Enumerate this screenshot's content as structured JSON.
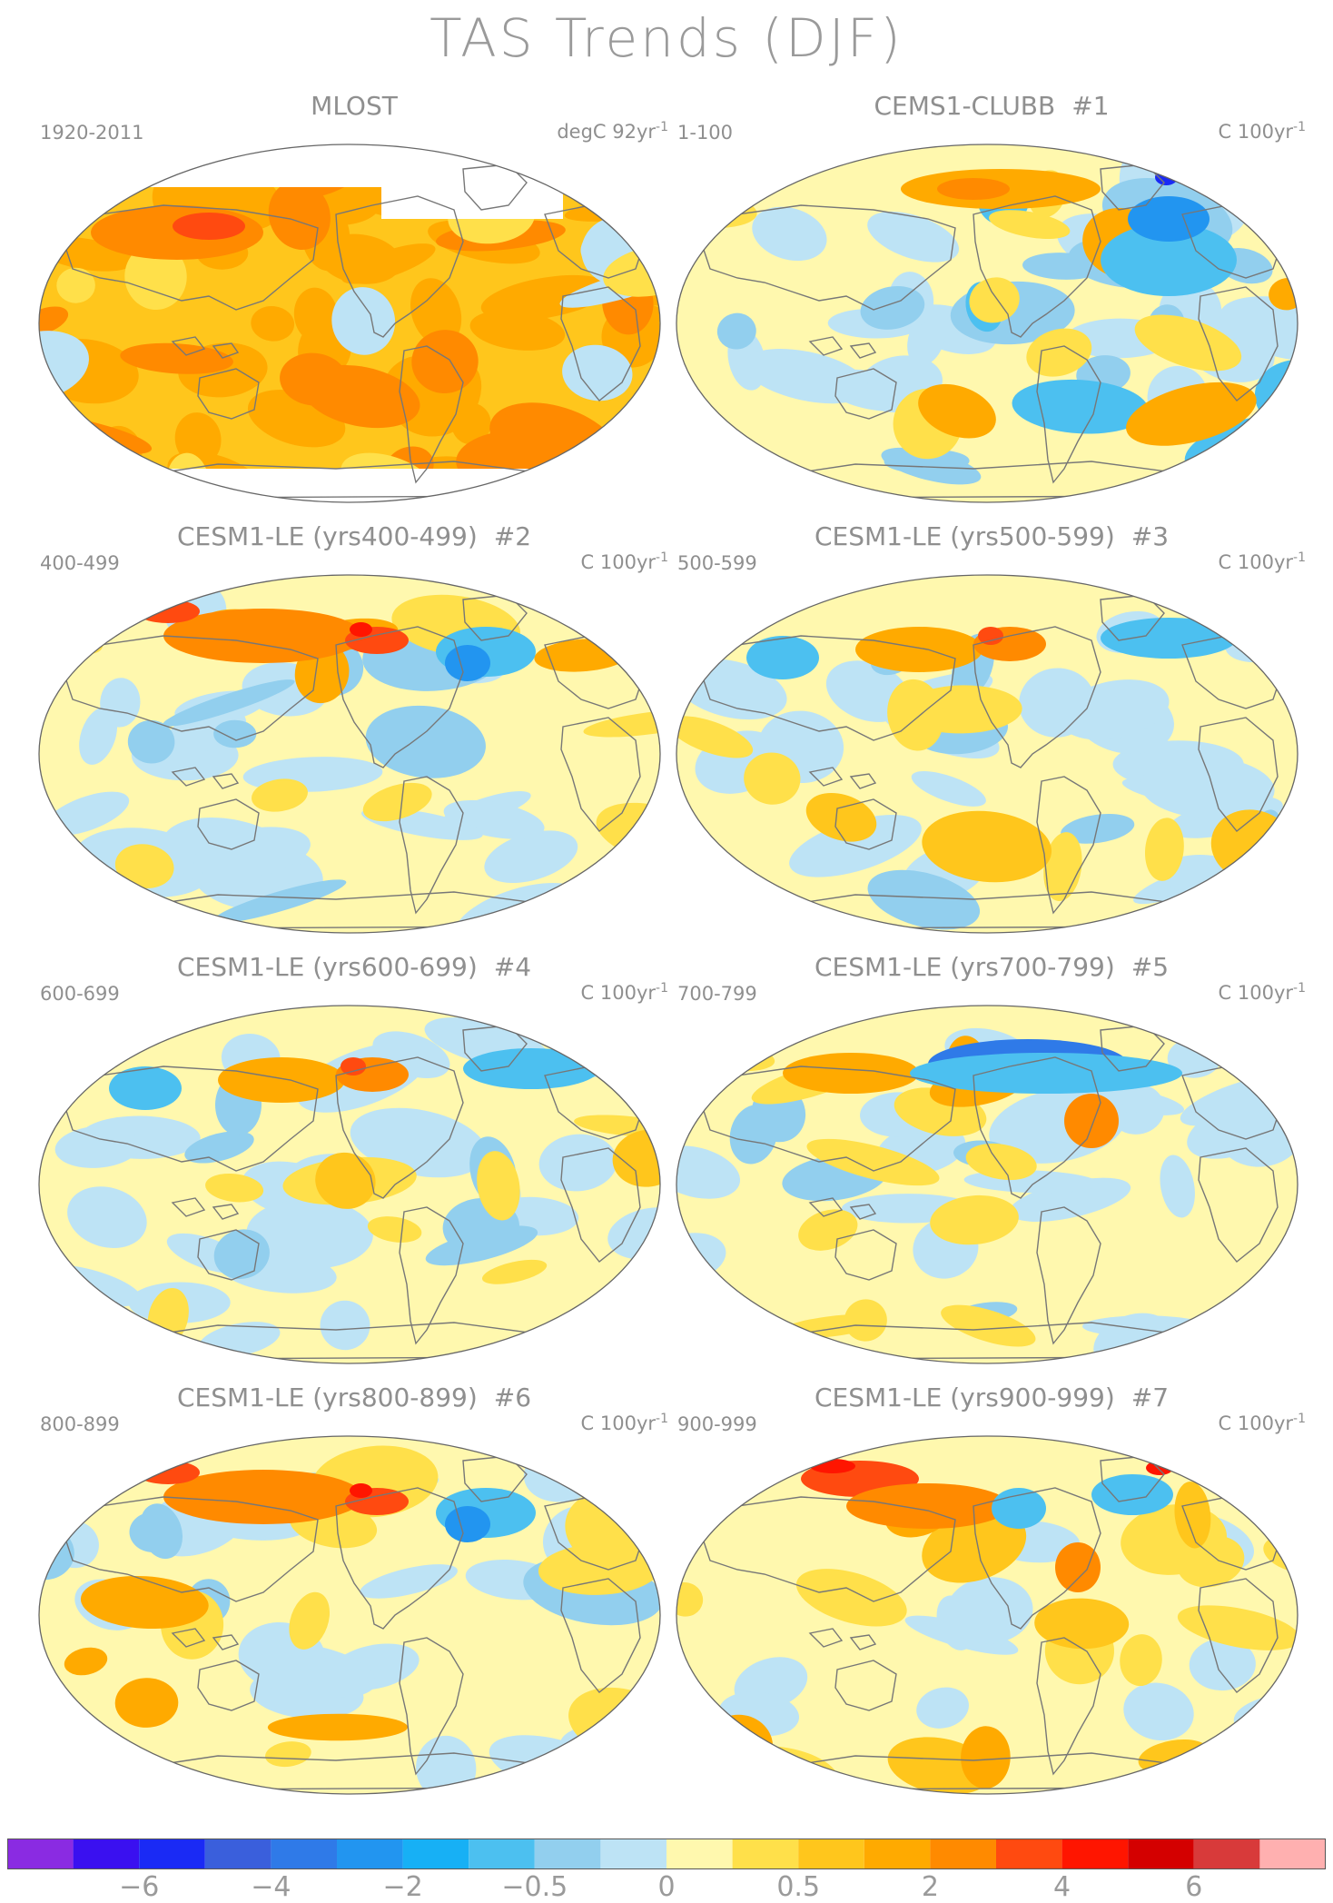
{
  "title": "TAS Trends (DJF)",
  "panels": [
    {
      "name": "MLOST",
      "num": "",
      "period": "1920-2011",
      "unit_prefix": "degC 92yr",
      "unit_exp": "-1",
      "style": "obs"
    },
    {
      "name": "CEMS1-CLUBB",
      "num": "#1",
      "period": "1-100",
      "unit_prefix": "C 100yr",
      "unit_exp": "-1",
      "style": "cool"
    },
    {
      "name": "CESM1-LE (yrs400-499)",
      "num": "#2",
      "period": "400-499",
      "unit_prefix": "C 100yr",
      "unit_exp": "-1",
      "style": "warmasia"
    },
    {
      "name": "CESM1-LE (yrs500-599)",
      "num": "#3",
      "period": "500-599",
      "unit_prefix": "C 100yr",
      "unit_exp": "-1",
      "style": "mixed"
    },
    {
      "name": "CESM1-LE (yrs600-699)",
      "num": "#4",
      "period": "600-699",
      "unit_prefix": "C 100yr",
      "unit_exp": "-1",
      "style": "mixed"
    },
    {
      "name": "CESM1-LE (yrs700-799)",
      "num": "#5",
      "period": "700-799",
      "unit_prefix": "C 100yr",
      "unit_exp": "-1",
      "style": "coolnorth"
    },
    {
      "name": "CESM1-LE (yrs800-899)",
      "num": "#6",
      "period": "800-899",
      "unit_prefix": "C 100yr",
      "unit_exp": "-1",
      "style": "warmasia"
    },
    {
      "name": "CESM1-LE (yrs900-999)",
      "num": "#7",
      "period": "900-999",
      "unit_prefix": "C 100yr",
      "unit_exp": "-1",
      "style": "warm"
    }
  ],
  "colorbar": {
    "colors": [
      "#8a2be2",
      "#3a10f0",
      "#1a2af5",
      "#3a5fdc",
      "#2f7ae8",
      "#2295f0",
      "#17b0f5",
      "#4cc0f0",
      "#92cfee",
      "#bde3f5",
      "#fff8ae",
      "#ffe04a",
      "#ffc61c",
      "#ffaa00",
      "#ff8a00",
      "#ff4a10",
      "#ff1500",
      "#d40000",
      "#d83a3a",
      "#ffb0b0"
    ],
    "labels": [
      "−6",
      "−4",
      "−2",
      "−0.5",
      "0",
      "0.5",
      "2",
      "4",
      "6"
    ]
  }
}
